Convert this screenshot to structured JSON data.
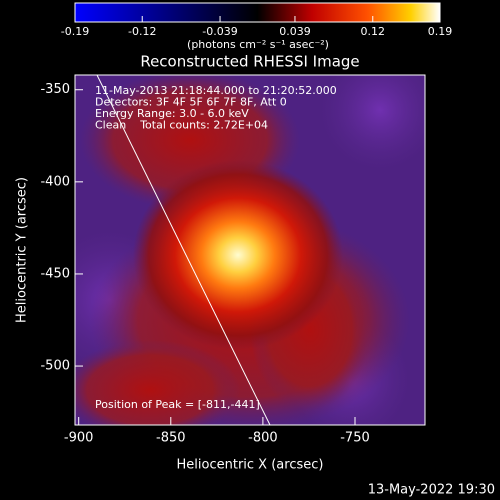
{
  "chart_data": {
    "type": "image",
    "title": "Reconstructed RHESSI Image",
    "colorbar_label": "(photons cm⁻² s⁻¹ asec⁻²)",
    "clim": [
      -0.19,
      0.19
    ],
    "colorbar_ticks": [
      -0.19,
      -0.12,
      -0.039,
      0.039,
      0.12,
      0.19
    ],
    "xlabel": "Heliocentric X (arcsec)",
    "ylabel": "Heliocentric Y (arcsec)",
    "xlim": [
      -902,
      -712
    ],
    "ylim": [
      -532,
      -342
    ],
    "xticks": [
      -900,
      -850,
      -800,
      -750
    ],
    "yticks": [
      -350,
      -400,
      -450,
      -500
    ],
    "annotations": [
      "11-May-2013 21:18:44.000 to 21:20:52.000",
      "Detectors: 3F 4F 5F 6F 7F 8F, Att 0",
      "Energy Range: 3.0 - 6.0 keV",
      "Clean    Total counts: 2.72E+04"
    ],
    "peak_label": "Position of Peak = [-811,-441]",
    "footer": "13-May-2022 19:30"
  }
}
